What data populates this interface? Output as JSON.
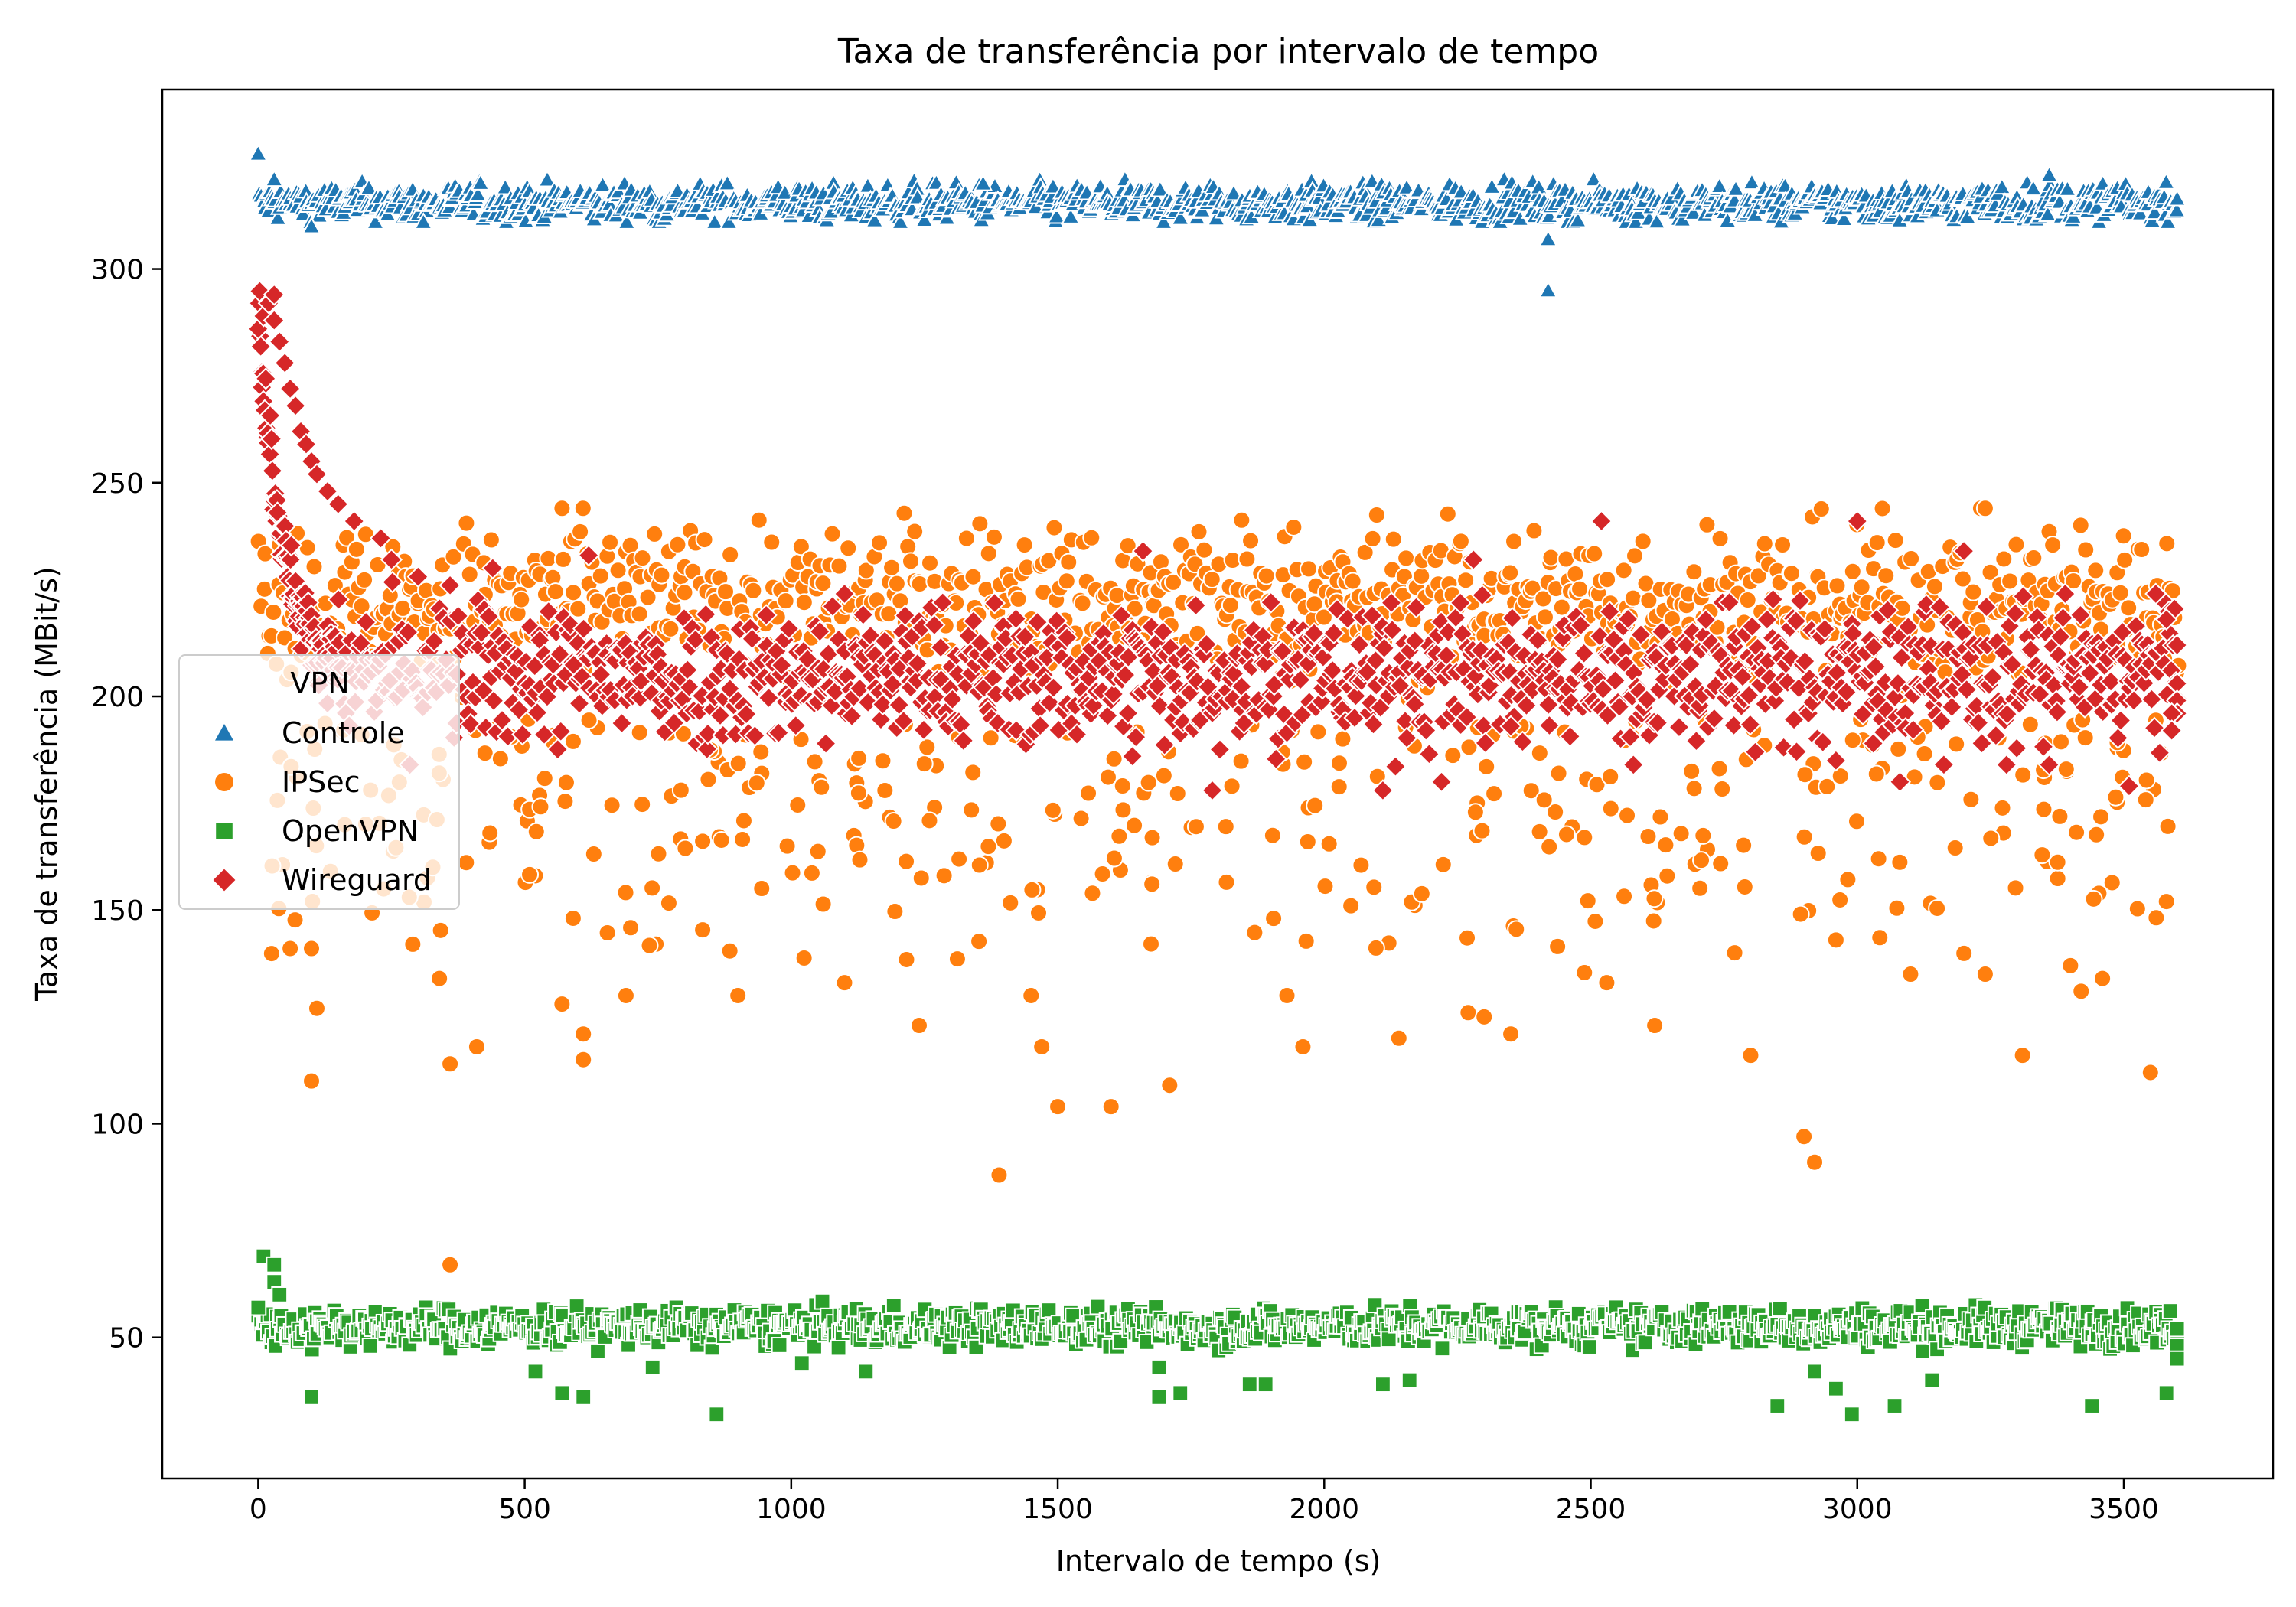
{
  "chart_data": {
    "type": "scatter",
    "title": "Taxa de transferência por intervalo de tempo",
    "xlabel": "Intervalo de tempo (s)",
    "ylabel": "Taxa de transferência (MBit/s)",
    "xlim": [
      -180,
      3780
    ],
    "ylim": [
      17,
      342
    ],
    "xticks": [
      0,
      500,
      1000,
      1500,
      2000,
      2500,
      3000,
      3500
    ],
    "yticks": [
      50,
      100,
      150,
      200,
      250,
      300
    ],
    "grid": false,
    "legend": {
      "title": "VPN",
      "placement": "center-left"
    },
    "series": [
      {
        "name": "Controle",
        "color": "#1f77b4",
        "marker": "triangle",
        "points": [
          [
            0,
            327
          ],
          [
            30,
            321
          ],
          [
            100,
            310
          ],
          [
            310,
            311
          ],
          [
            1360,
            320
          ],
          [
            2420,
            307
          ],
          [
            2420,
            295
          ],
          [
            3360,
            322
          ]
        ],
        "band": {
          "x_start": 0,
          "x_end": 3600,
          "step": 3,
          "y_min": 311,
          "y_max": 321,
          "center": 315.5,
          "spread": 2.2
        }
      },
      {
        "name": "IPSec",
        "color": "#ff7f0e",
        "marker": "circle",
        "points": [
          [
            360,
            67
          ],
          [
            1390,
            88
          ],
          [
            2920,
            91
          ],
          [
            2900,
            97
          ],
          [
            100,
            110
          ],
          [
            360,
            114
          ],
          [
            610,
            115
          ],
          [
            1500,
            104
          ],
          [
            1600,
            104
          ],
          [
            3550,
            112
          ],
          [
            3310,
            116
          ],
          [
            2800,
            116
          ],
          [
            1960,
            118
          ],
          [
            1470,
            118
          ],
          [
            410,
            118
          ],
          [
            2140,
            120
          ],
          [
            2350,
            121
          ],
          [
            1240,
            123
          ],
          [
            610,
            121
          ],
          [
            570,
            128
          ],
          [
            110,
            127
          ],
          [
            690,
            130
          ],
          [
            900,
            130
          ],
          [
            2270,
            126
          ],
          [
            2300,
            125
          ],
          [
            3580,
            152
          ],
          [
            1710,
            109
          ],
          [
            2050,
            151
          ],
          [
            3460,
            134
          ],
          [
            3420,
            131
          ],
          [
            3400,
            137
          ],
          [
            2620,
            123
          ],
          [
            3100,
            135
          ],
          [
            1100,
            133
          ],
          [
            340,
            134
          ],
          [
            1450,
            130
          ],
          [
            2530,
            133
          ],
          [
            60,
            141
          ],
          [
            100,
            141
          ],
          [
            290,
            142
          ],
          [
            1930,
            130
          ],
          [
            2770,
            140
          ],
          [
            3240,
            135
          ],
          [
            3040,
            162
          ],
          [
            2960,
            143
          ]
        ],
        "band": {
          "x_start": 0,
          "x_end": 3600,
          "step": 4,
          "y_min": 190,
          "y_max": 244,
          "center": 222,
          "spread": 9
        },
        "scatter_low": {
          "count": 360,
          "y_min": 135,
          "y_max": 195
        }
      },
      {
        "name": "OpenVPN",
        "color": "#2ca02c",
        "marker": "square",
        "points": [
          [
            100,
            36
          ],
          [
            210,
            48
          ],
          [
            570,
            37
          ],
          [
            610,
            36
          ],
          [
            860,
            32
          ],
          [
            1020,
            44
          ],
          [
            1690,
            36
          ],
          [
            1730,
            37
          ],
          [
            1690,
            43
          ],
          [
            1860,
            39
          ],
          [
            1890,
            39
          ],
          [
            2110,
            39
          ],
          [
            2160,
            40
          ],
          [
            2850,
            34
          ],
          [
            2920,
            42
          ],
          [
            2990,
            32
          ],
          [
            3070,
            34
          ],
          [
            3140,
            40
          ],
          [
            3440,
            34
          ],
          [
            3580,
            37
          ],
          [
            2960,
            38
          ],
          [
            3600,
            48
          ],
          [
            3600,
            52
          ],
          [
            3600,
            45
          ],
          [
            1140,
            42
          ],
          [
            740,
            43
          ],
          [
            520,
            42
          ],
          [
            0,
            57
          ],
          [
            10,
            69
          ],
          [
            30,
            67
          ],
          [
            30,
            63
          ],
          [
            40,
            60
          ]
        ],
        "band": {
          "x_start": 0,
          "x_end": 3600,
          "step": 3,
          "y_min": 43,
          "y_max": 59,
          "center": 52.5,
          "spread": 2.2
        }
      },
      {
        "name": "Wireguard",
        "color": "#d62728",
        "marker": "diamond",
        "points": [
          [
            0,
            286
          ],
          [
            10,
            289
          ],
          [
            20,
            292
          ],
          [
            30,
            294
          ],
          [
            30,
            288
          ],
          [
            40,
            283
          ],
          [
            50,
            278
          ],
          [
            60,
            272
          ],
          [
            70,
            268
          ],
          [
            80,
            262
          ],
          [
            90,
            259
          ],
          [
            100,
            255
          ],
          [
            110,
            252
          ],
          [
            130,
            248
          ],
          [
            150,
            245
          ],
          [
            180,
            241
          ],
          [
            230,
            237
          ],
          [
            250,
            232
          ],
          [
            300,
            228
          ],
          [
            360,
            226
          ],
          [
            440,
            230
          ],
          [
            620,
            233
          ],
          [
            1100,
            224
          ],
          [
            1660,
            234
          ],
          [
            1900,
            222
          ],
          [
            2170,
            213
          ],
          [
            2280,
            232
          ],
          [
            2520,
            241
          ],
          [
            2760,
            222
          ],
          [
            3000,
            241
          ],
          [
            3200,
            234
          ],
          [
            3390,
            224
          ],
          [
            3560,
            224
          ],
          [
            3580,
            218
          ],
          [
            3600,
            212
          ],
          [
            3600,
            203
          ],
          [
            3600,
            199
          ],
          [
            3600,
            196
          ],
          [
            3590,
            196
          ],
          [
            3590,
            192
          ],
          [
            1790,
            178
          ],
          [
            2110,
            178
          ],
          [
            2220,
            180
          ],
          [
            2580,
            184
          ],
          [
            2350,
            193
          ],
          [
            3280,
            184
          ],
          [
            3080,
            180
          ],
          [
            3510,
            179
          ],
          [
            3360,
            184
          ],
          [
            2960,
            185
          ],
          [
            3030,
            189
          ],
          [
            1640,
            186
          ]
        ],
        "band": {
          "x_start": 150,
          "x_end": 3600,
          "step": 3,
          "y_min": 181,
          "y_max": 232,
          "center": 205,
          "spread": 8
        },
        "early_decay": {
          "x_start": 0,
          "x_end": 150,
          "step": 3
        }
      }
    ]
  }
}
